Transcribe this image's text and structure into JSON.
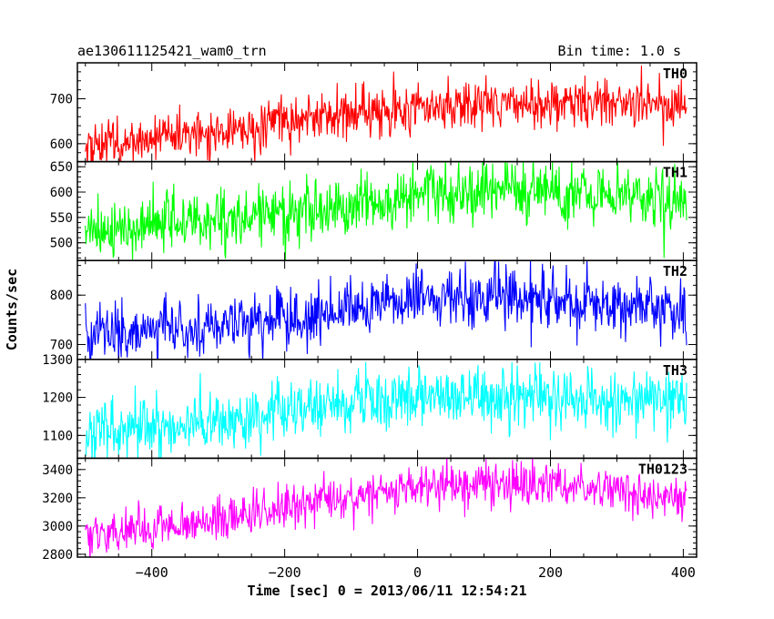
{
  "header": {
    "title": "ae130611125421_wam0_trn",
    "bin_time": "Bin time: 1.0 s"
  },
  "chart_data": {
    "type": "line",
    "title": "ae130611125421_wam0_trn",
    "xlabel": "Time [sec] 0 = 2013/06/11 12:54:21",
    "ylabel": "Counts/sec",
    "xlim": [
      -512,
      420
    ],
    "x_ticks": [
      -400,
      -200,
      0,
      200,
      400
    ],
    "x_tick_labels": [
      "−400",
      "−200",
      "0",
      "200",
      "400"
    ],
    "x_range": [
      -500,
      405
    ],
    "grid": false,
    "panels": [
      {
        "name": "TH0",
        "color": "#ff0000",
        "ylim": [
          560,
          780
        ],
        "y_ticks": [
          600,
          700
        ],
        "y_tick_labels": [
          "600",
          "700"
        ],
        "trend": [
          [
            -500,
            595
          ],
          [
            -300,
            625
          ],
          [
            -100,
            665
          ],
          [
            0,
            675
          ],
          [
            100,
            690
          ],
          [
            250,
            690
          ],
          [
            405,
            680
          ]
        ],
        "noise": 28,
        "step_at": 0,
        "step": 15
      },
      {
        "name": "TH1",
        "color": "#00ff00",
        "ylim": [
          465,
          660
        ],
        "y_ticks": [
          500,
          550,
          600,
          650
        ],
        "y_tick_labels": [
          "500",
          "550",
          "600",
          "650"
        ],
        "trend": [
          [
            -500,
            520
          ],
          [
            -300,
            545
          ],
          [
            -100,
            570
          ],
          [
            0,
            595
          ],
          [
            150,
            600
          ],
          [
            405,
            585
          ]
        ],
        "noise": 30
      },
      {
        "name": "TH2",
        "color": "#0000ff",
        "ylim": [
          670,
          870
        ],
        "y_ticks": [
          700,
          800
        ],
        "y_tick_labels": [
          "700",
          "800"
        ],
        "trend": [
          [
            -500,
            720
          ],
          [
            -300,
            740
          ],
          [
            -100,
            770
          ],
          [
            0,
            790
          ],
          [
            150,
            795
          ],
          [
            405,
            770
          ]
        ],
        "noise": 30
      },
      {
        "name": "TH3",
        "color": "#00ffff",
        "ylim": [
          1040,
          1300
        ],
        "y_ticks": [
          1100,
          1200,
          1300
        ],
        "y_tick_labels": [
          "1100",
          "1200",
          "1300"
        ],
        "trend": [
          [
            -500,
            1100
          ],
          [
            -300,
            1140
          ],
          [
            -100,
            1180
          ],
          [
            0,
            1200
          ],
          [
            150,
            1200
          ],
          [
            405,
            1190
          ]
        ],
        "noise": 40
      },
      {
        "name": "TH0123",
        "color": "#ff00ff",
        "ylim": [
          2780,
          3480
        ],
        "y_ticks": [
          2800,
          3000,
          3200,
          3400
        ],
        "y_tick_labels": [
          "2800",
          "3000",
          "3200",
          "3400"
        ],
        "trend": [
          [
            -500,
            2920
          ],
          [
            -300,
            3050
          ],
          [
            -150,
            3170
          ],
          [
            0,
            3280
          ],
          [
            150,
            3290
          ],
          [
            300,
            3250
          ],
          [
            405,
            3170
          ]
        ],
        "noise": 75
      }
    ]
  }
}
